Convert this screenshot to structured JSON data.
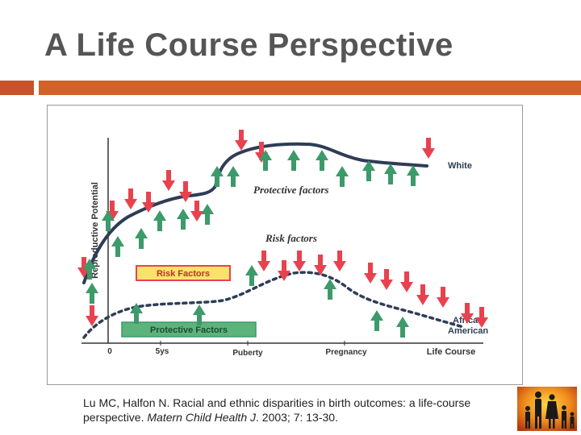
{
  "slide": {
    "title": "A Life Course Perspective"
  },
  "diagram": {
    "y_axis_label": "Reproductive Potential",
    "curve_labels": {
      "white": "White",
      "african_american_line1": "African",
      "african_american_line2": "American"
    },
    "annotations": {
      "protective_factors": "Protective factors",
      "risk_factors": "Risk factors"
    },
    "legend": {
      "risk": "Risk Factors",
      "protective": "Protective Factors"
    },
    "x_axis_ticks": [
      "0",
      "5ys",
      "Puberty",
      "Pregnancy",
      "Life Course"
    ],
    "colors": {
      "risk_arrow": "#e8424f",
      "protective_arrow": "#3d9a6a",
      "risk_legend_bg": "#f9e36a",
      "risk_legend_border": "#e8424f",
      "protective_legend_bg": "#5db37c",
      "curve": "#2e3d55"
    }
  },
  "citation": {
    "authors_title": "Lu MC, Halfon N. Racial and ethnic disparities in birth outcomes: a life-course perspective.",
    "journal": "Matern Child Health J",
    "details": ". 2003; 7: 13-30."
  },
  "logo": {
    "icon": "family-silhouette-icon"
  }
}
